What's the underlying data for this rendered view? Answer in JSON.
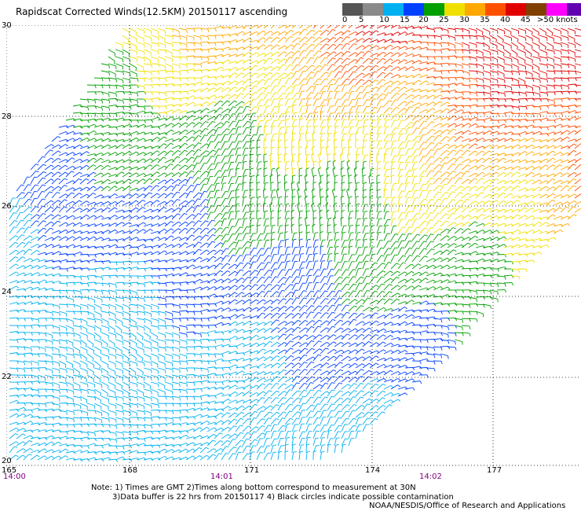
{
  "title": "Rapidscat Corrected Winds(12.5KM) 20150117 ascending",
  "legend": {
    "labels": [
      "0",
      "5",
      "10",
      "15",
      "20",
      "25",
      "30",
      "35",
      "40",
      "45",
      ">50 knots"
    ],
    "colors": [
      "#555555",
      "#8a8a8a",
      "#00b0f0",
      "#0040ff",
      "#00a000",
      "#f0e000",
      "#ffa800",
      "#ff5000",
      "#e00000",
      "#804000",
      "#ff00ff",
      "#6000b0"
    ]
  },
  "axes": {
    "lat_labels": [
      "30",
      "28",
      "26",
      "24",
      "22",
      "20"
    ],
    "lon_labels": [
      "165",
      "168",
      "171",
      "174",
      "177"
    ]
  },
  "times": [
    "14:00",
    "14:01",
    "14:02"
  ],
  "notes": {
    "line1": "Note: 1) Times are GMT 2)Times along bottom correspond to measurement at 30N",
    "line2": "3)Data buffer is 22 hrs from 20150117 4) Black circles indicate possible contamination",
    "line3": "NOAA/NESDIS/Office of Research and Applications"
  }
}
